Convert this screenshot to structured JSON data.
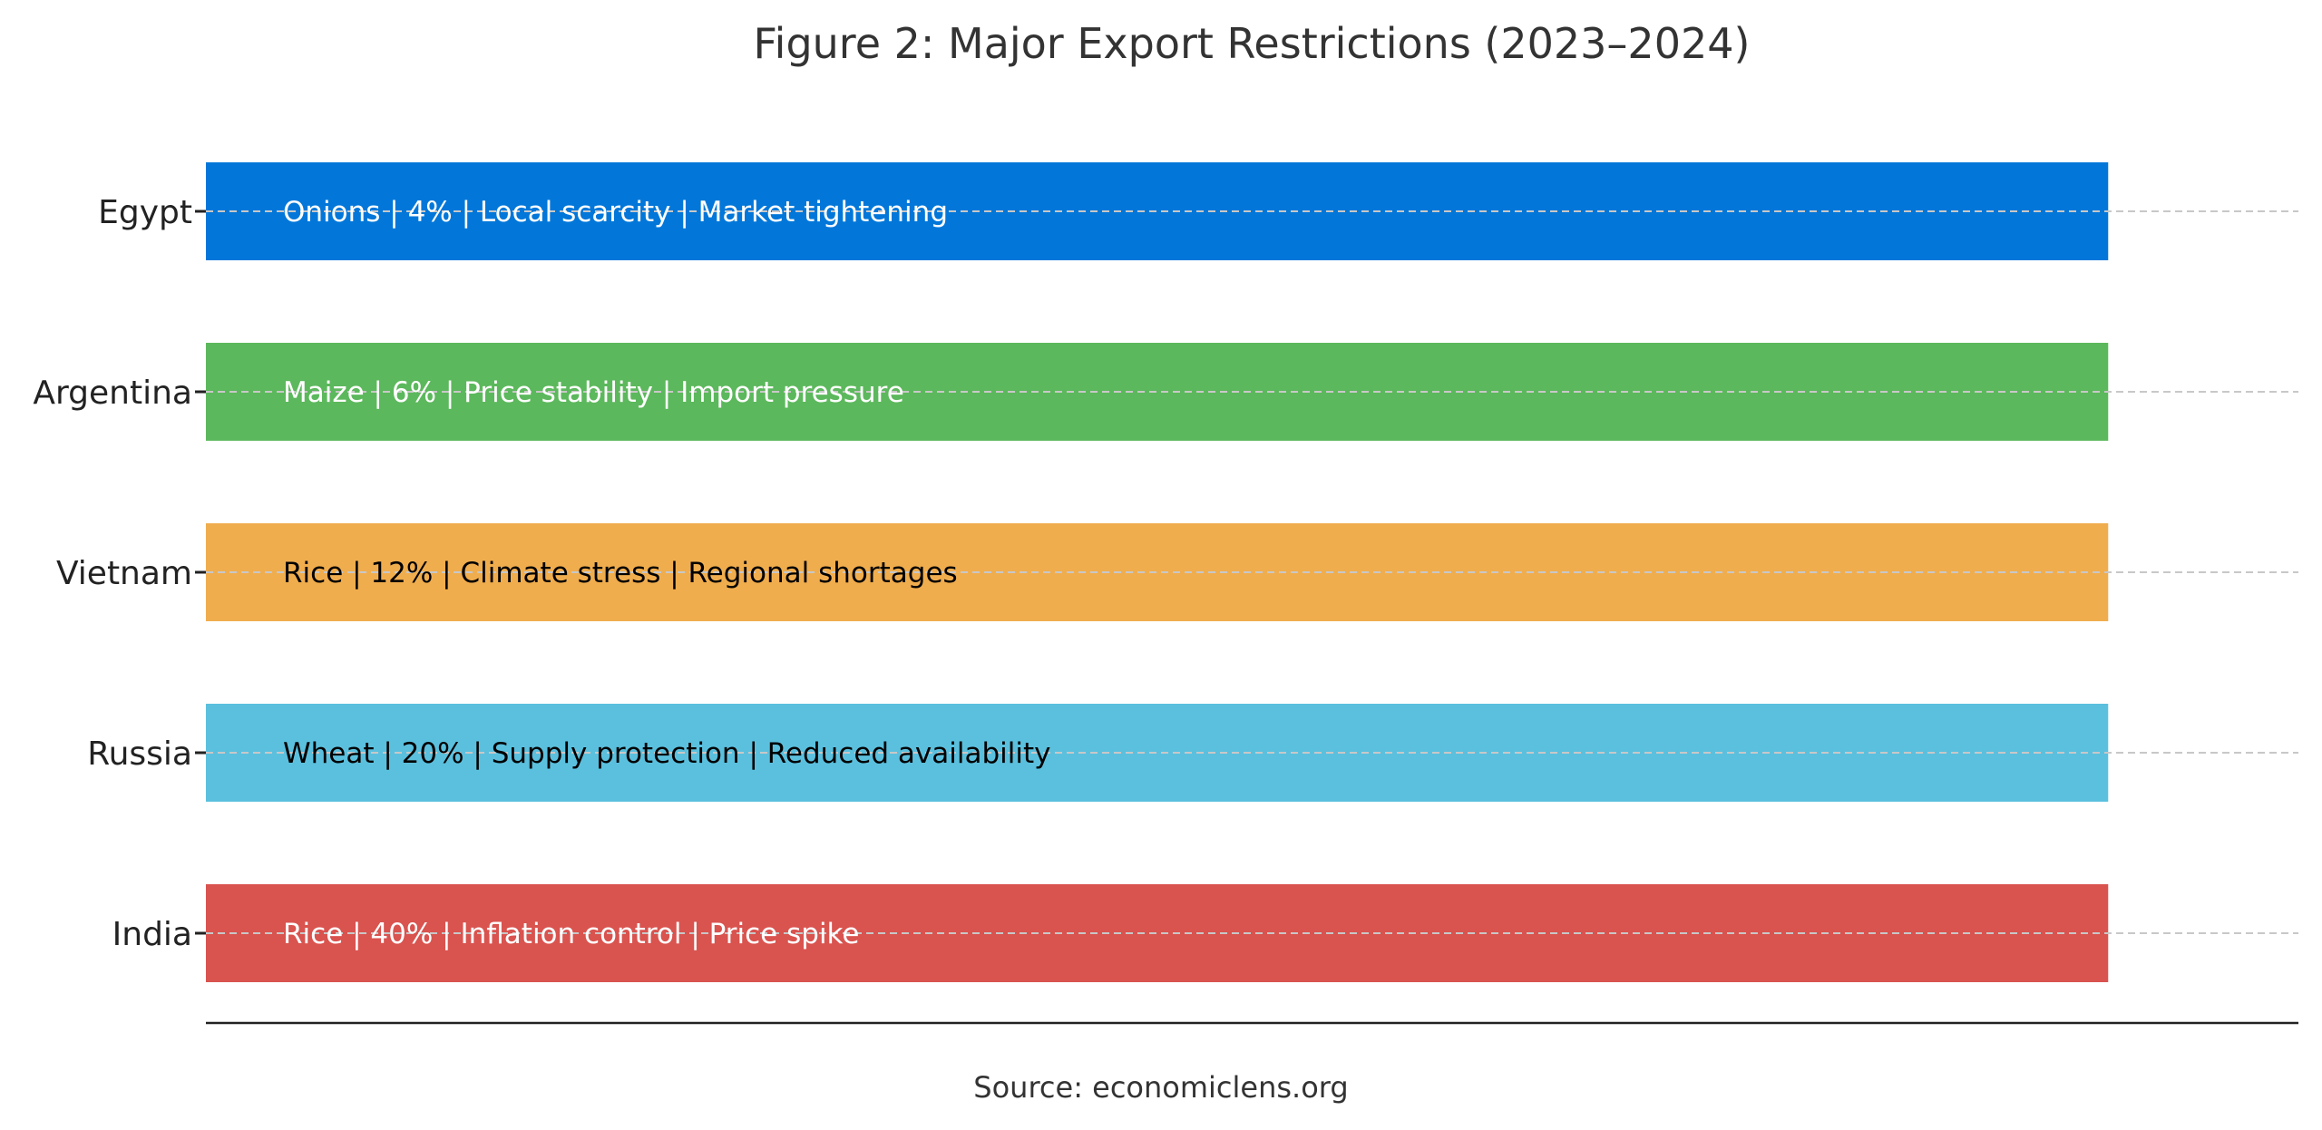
{
  "chart_data": {
    "type": "bar",
    "orientation": "horizontal",
    "title": "Figure 2: Major Export Restrictions (2023–2024)",
    "xlabel": "",
    "ylabel": "",
    "source": "Source: economiclens.org",
    "grid": "horizontal dashed gridlines at each category",
    "legend": "none",
    "categories": [
      "India",
      "Russia",
      "Vietnam",
      "Argentina",
      "Egypt"
    ],
    "values": [
      1,
      1,
      1,
      1,
      1
    ],
    "xlim": [
      0,
      1.1
    ],
    "bar_labels": [
      "Rice | 40% | Inflation control | Price spike",
      "Wheat | 20% | Supply protection | Reduced availability",
      "Rice | 12% | Climate stress | Regional shortages",
      "Maize | 6% | Price stability | Import pressure",
      "Onions | 4% | Local scarcity | Market tightening"
    ],
    "colors": [
      "#D9534F",
      "#5BC0DE",
      "#F0AD4E",
      "#5CB85C",
      "#0277D9"
    ],
    "label_colors": [
      "#ffffff",
      "#000000",
      "#000000",
      "#ffffff",
      "#ffffff"
    ]
  }
}
